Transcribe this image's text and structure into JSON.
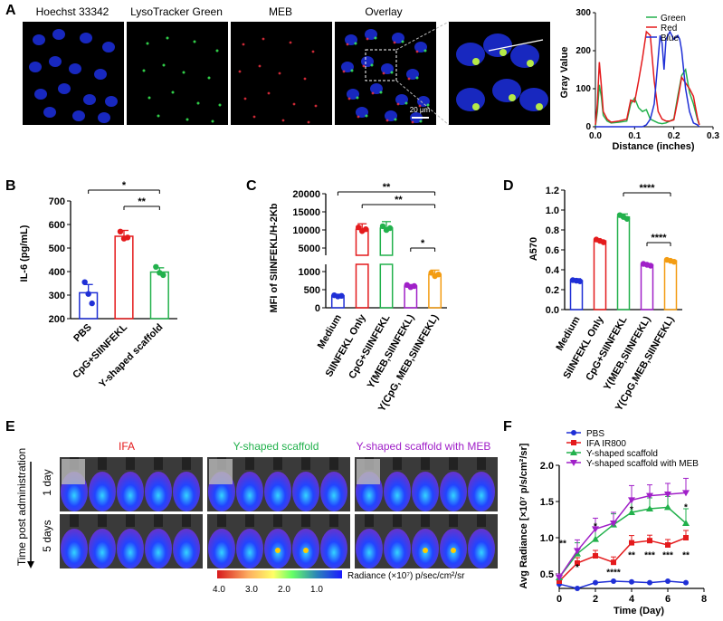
{
  "panels": {
    "A": "A",
    "B": "B",
    "C": "C",
    "D": "D",
    "E": "E",
    "F": "F"
  },
  "colors": {
    "blue": "#1f2fd6",
    "red": "#e41a1c",
    "green": "#22b14c",
    "purple": "#a020c8",
    "orange": "#f39c12",
    "black": "#000000"
  },
  "panel_a": {
    "image_labels": [
      "Hoechst 33342",
      "LysoTracker Green",
      "MEB",
      "Overlay"
    ],
    "scale_bar": "20 μm",
    "chart_data": {
      "type": "line",
      "xlabel": "Distance (inches)",
      "ylabel": "Gray Value",
      "xlim": [
        0,
        0.3
      ],
      "ylim": [
        0,
        300
      ],
      "xticks": [
        "0.0",
        "0.1",
        "0.2",
        "0.3"
      ],
      "yticks": [
        "0",
        "100",
        "200",
        "300"
      ],
      "legend": [
        "Green",
        "Red",
        "Blue"
      ],
      "series": [
        {
          "name": "Green",
          "x": [
            0,
            0.005,
            0.01,
            0.015,
            0.02,
            0.03,
            0.04,
            0.06,
            0.08,
            0.09,
            0.1,
            0.11,
            0.12,
            0.13,
            0.14,
            0.15,
            0.16,
            0.17,
            0.18,
            0.19,
            0.2,
            0.21,
            0.22,
            0.23,
            0.24,
            0.25,
            0.26,
            0.265
          ],
          "y": [
            2,
            40,
            110,
            80,
            30,
            15,
            10,
            12,
            15,
            60,
            75,
            50,
            40,
            45,
            20,
            15,
            10,
            8,
            10,
            15,
            20,
            80,
            135,
            150,
            90,
            60,
            20,
            5
          ]
        },
        {
          "name": "Red",
          "x": [
            0,
            0.005,
            0.01,
            0.015,
            0.02,
            0.03,
            0.04,
            0.06,
            0.08,
            0.09,
            0.1,
            0.11,
            0.12,
            0.13,
            0.14,
            0.15,
            0.16,
            0.17,
            0.18,
            0.19,
            0.2,
            0.21,
            0.22,
            0.23,
            0.24,
            0.25,
            0.26,
            0.265
          ],
          "y": [
            5,
            60,
            170,
            110,
            40,
            20,
            12,
            15,
            20,
            70,
            65,
            120,
            180,
            250,
            240,
            120,
            40,
            20,
            15,
            15,
            18,
            70,
            130,
            115,
            100,
            80,
            25,
            5
          ]
        },
        {
          "name": "Blue",
          "x": [
            0,
            0.01,
            0.02,
            0.04,
            0.06,
            0.08,
            0.1,
            0.12,
            0.13,
            0.14,
            0.15,
            0.16,
            0.165,
            0.17,
            0.175,
            0.18,
            0.19,
            0.2,
            0.21,
            0.215,
            0.22,
            0.23,
            0.24,
            0.25,
            0.26,
            0.265
          ],
          "y": [
            0,
            0,
            0,
            0,
            0,
            0,
            0,
            0,
            5,
            20,
            60,
            180,
            240,
            220,
            150,
            230,
            250,
            230,
            240,
            230,
            200,
            100,
            40,
            10,
            5,
            0
          ]
        }
      ]
    }
  },
  "panel_b": {
    "chart_data": {
      "type": "bar",
      "ylabel": "IL-6 (pg/mL)",
      "ylim": [
        200,
        700
      ],
      "yticks": [
        "200",
        "300",
        "400",
        "500",
        "600",
        "700"
      ],
      "categories": [
        "PBS",
        "CpG+SIINFEKL",
        "Y-shaped scaffold"
      ],
      "values": [
        310,
        550,
        398
      ],
      "errors": [
        35,
        25,
        18
      ],
      "points": [
        [
          355,
          305,
          265
        ],
        [
          570,
          540,
          545
        ],
        [
          420,
          395,
          385
        ]
      ],
      "colors": [
        "#1f2fd6",
        "#e41a1c",
        "#22b14c"
      ],
      "significance": [
        "*",
        "**"
      ]
    }
  },
  "panel_c": {
    "chart_data": {
      "type": "bar",
      "ylabel": "MFI of SIINFEKL/H-2Kb",
      "yticks_upper": [
        "5000",
        "10000",
        "15000",
        "20000"
      ],
      "yticks_lower": [
        "0",
        "500",
        "1000"
      ],
      "categories": [
        "Medium",
        "SIINFEKL Only",
        "CpG+SIINFEKL",
        "Y(MEB,SIINFEKL)",
        "Y(CpG, MEB,SIINFEKL)"
      ],
      "values": [
        330,
        10200,
        10500,
        600,
        920
      ],
      "errors": [
        30,
        1500,
        1800,
        40,
        120
      ],
      "colors": [
        "#1f2fd6",
        "#e41a1c",
        "#22b14c",
        "#a020c8",
        "#f39c12"
      ],
      "significance": [
        "**",
        "**",
        "*"
      ]
    }
  },
  "panel_d": {
    "chart_data": {
      "type": "bar",
      "ylabel": "A570",
      "ylim": [
        0,
        1.2
      ],
      "yticks": [
        "0.0",
        "0.2",
        "0.4",
        "0.6",
        "0.8",
        "1.0",
        "1.2"
      ],
      "categories": [
        "Medium",
        "SIINFEKL Only",
        "CpG+SIINFEKL",
        "Y(MEB,SIINFEKL)",
        "Y(CpG,MEB,SIINFEKL)"
      ],
      "values": [
        0.29,
        0.69,
        0.93,
        0.45,
        0.49
      ],
      "errors": [
        0.02,
        0.01,
        0.03,
        0.01,
        0.01
      ],
      "colors": [
        "#1f2fd6",
        "#e41a1c",
        "#22b14c",
        "#a020c8",
        "#f39c12"
      ],
      "significance": [
        "****",
        "****"
      ]
    }
  },
  "panel_e": {
    "group_labels": [
      "IFA",
      "Y-shaped scaffold",
      "Y-shaped scaffold with MEB"
    ],
    "group_colors": [
      "#e41a1c",
      "#22b14c",
      "#a020c8"
    ],
    "side_label": "Time post administration",
    "row_labels": [
      "1 day",
      "5 days"
    ],
    "colorbar_ticks": [
      "4.0",
      "3.0",
      "2.0",
      "1.0"
    ],
    "colorbar_label": "Radiance (×10⁷) p/sec/cm²/sr"
  },
  "panel_f": {
    "chart_data": {
      "type": "line",
      "xlabel": "Time (Day)",
      "ylabel": "Avg Radiance [×10⁷ p/s/cm²/sr]",
      "xlim": [
        0,
        8
      ],
      "ylim": [
        0.3,
        2.0
      ],
      "xticks": [
        "0",
        "2",
        "4",
        "6",
        "8"
      ],
      "yticks": [
        "0.5",
        "1.0",
        "1.5",
        "2.0"
      ],
      "x": [
        0,
        1,
        2,
        3,
        4,
        5,
        6,
        7
      ],
      "series": [
        {
          "name": "PBS",
          "color": "#1f2fd6",
          "values": [
            0.36,
            0.3,
            0.38,
            0.4,
            0.39,
            0.38,
            0.4,
            0.38
          ]
        },
        {
          "name": "IFA IR800",
          "color": "#e41a1c",
          "values": [
            0.4,
            0.65,
            0.75,
            0.66,
            0.93,
            0.96,
            0.9,
            1.0
          ]
        },
        {
          "name": "Y-shaped scaffold",
          "color": "#22b14c",
          "values": [
            0.45,
            0.78,
            0.98,
            1.18,
            1.35,
            1.4,
            1.42,
            1.2
          ]
        },
        {
          "name": "Y-shaped scaffold with MEB",
          "color": "#a020c8",
          "values": [
            0.45,
            0.82,
            1.12,
            1.2,
            1.52,
            1.58,
            1.6,
            1.62
          ]
        }
      ],
      "errors": [
        0.05,
        0.15,
        0.15,
        0.15,
        0.2,
        0.15,
        0.15,
        0.2
      ],
      "annotations_top": [
        "**",
        "*",
        "*",
        "*"
      ],
      "annotations_bottom": [
        "*",
        "****",
        "**",
        "***",
        "***",
        "**"
      ]
    }
  }
}
